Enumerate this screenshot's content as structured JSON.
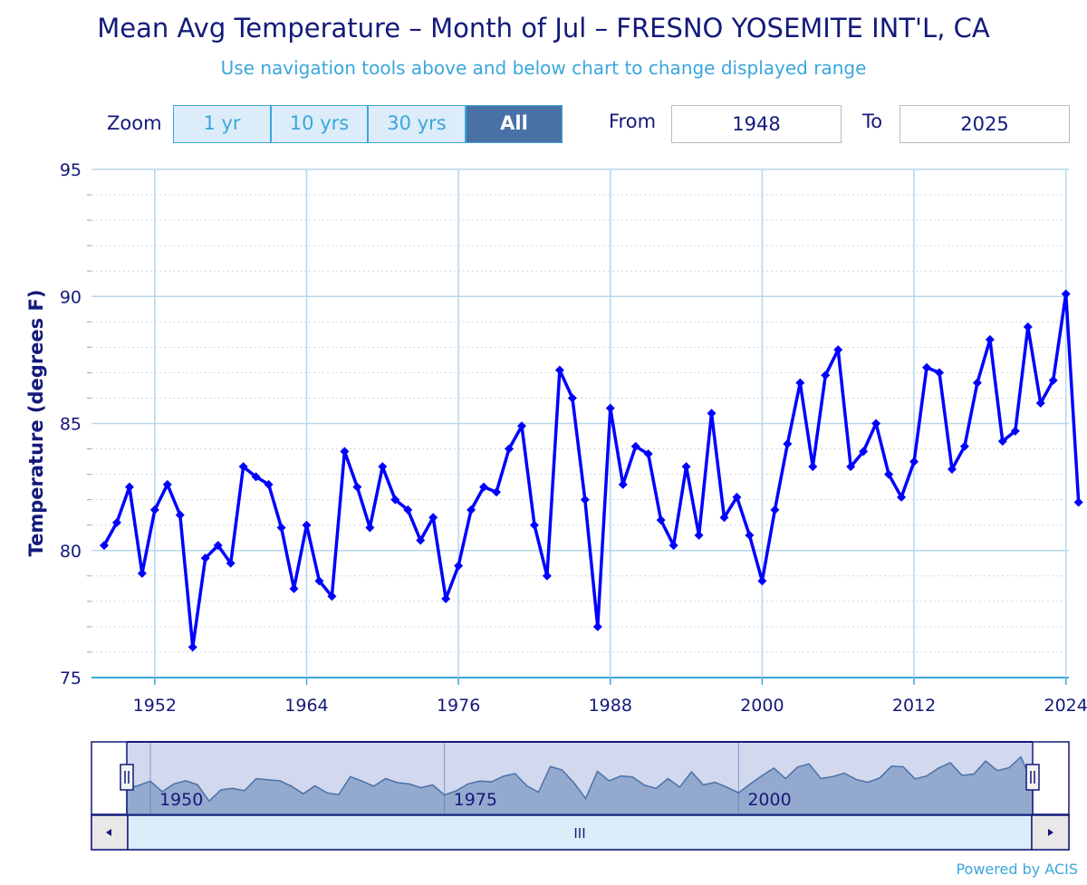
{
  "title": "Mean Avg Temperature – Month of Jul – FRESNO YOSEMITE INT'L, CA",
  "subtitle": "Use navigation tools above and below chart to change displayed range",
  "zoom": {
    "label": "Zoom",
    "buttons": [
      "1 yr",
      "10 yrs",
      "30 yrs",
      "All"
    ],
    "selected": "All"
  },
  "range": {
    "from_label": "From",
    "from_value": "1948",
    "to_label": "To",
    "to_value": "2025"
  },
  "navigator": {
    "labels": [
      "1950",
      "1975",
      "2000"
    ],
    "scroll_grip": "III"
  },
  "credit": "Powered by ACIS",
  "colors": {
    "line": "#0000ff",
    "axis_text": "#131a7a",
    "accent": "#3aa6dc",
    "grid": "#b5d7ec"
  },
  "chart_data": {
    "type": "line",
    "title": "Mean Avg Temperature – Month of Jul – FRESNO YOSEMITE INT'L, CA",
    "xlabel": "",
    "ylabel": "Temperature (degrees F)",
    "ylim": [
      75,
      95
    ],
    "xlim": [
      1947,
      2025
    ],
    "yticks": [
      75,
      80,
      85,
      90,
      95
    ],
    "xticks": [
      1952,
      1964,
      1976,
      1988,
      2000,
      2012,
      2024
    ],
    "series": [
      {
        "name": "Mean Avg Temperature",
        "x": [
          1948,
          1949,
          1950,
          1951,
          1952,
          1953,
          1954,
          1955,
          1956,
          1957,
          1958,
          1959,
          1960,
          1961,
          1962,
          1963,
          1964,
          1965,
          1966,
          1967,
          1968,
          1969,
          1970,
          1971,
          1972,
          1973,
          1974,
          1975,
          1976,
          1977,
          1978,
          1979,
          1980,
          1981,
          1982,
          1983,
          1984,
          1985,
          1986,
          1987,
          1988,
          1989,
          1990,
          1991,
          1992,
          1993,
          1994,
          1995,
          1996,
          1997,
          1998,
          1999,
          2000,
          2001,
          2002,
          2003,
          2004,
          2005,
          2006,
          2007,
          2008,
          2009,
          2010,
          2011,
          2012,
          2013,
          2014,
          2015,
          2016,
          2017,
          2018,
          2019,
          2020,
          2021,
          2022,
          2023,
          2024,
          2025
        ],
        "values": [
          80.2,
          81.1,
          82.5,
          79.1,
          81.6,
          82.6,
          81.4,
          76.2,
          79.7,
          80.2,
          79.5,
          83.3,
          82.9,
          82.6,
          80.9,
          78.5,
          81.0,
          78.8,
          78.2,
          83.9,
          82.5,
          80.9,
          83.3,
          82.0,
          81.6,
          80.4,
          81.3,
          78.1,
          79.4,
          81.6,
          82.5,
          82.3,
          84.0,
          84.9,
          81.0,
          79.0,
          87.1,
          86.0,
          82.0,
          77.0,
          85.6,
          82.6,
          84.1,
          83.8,
          81.2,
          80.2,
          83.3,
          80.6,
          85.4,
          81.3,
          82.1,
          80.6,
          78.8,
          81.6,
          84.2,
          86.6,
          83.3,
          86.9,
          87.9,
          83.3,
          83.9,
          85.0,
          83.0,
          82.1,
          83.5,
          87.2,
          87.0,
          83.2,
          84.1,
          86.6,
          88.3,
          84.3,
          84.7,
          88.8,
          85.8,
          86.7,
          90.1,
          81.9
        ]
      }
    ]
  }
}
